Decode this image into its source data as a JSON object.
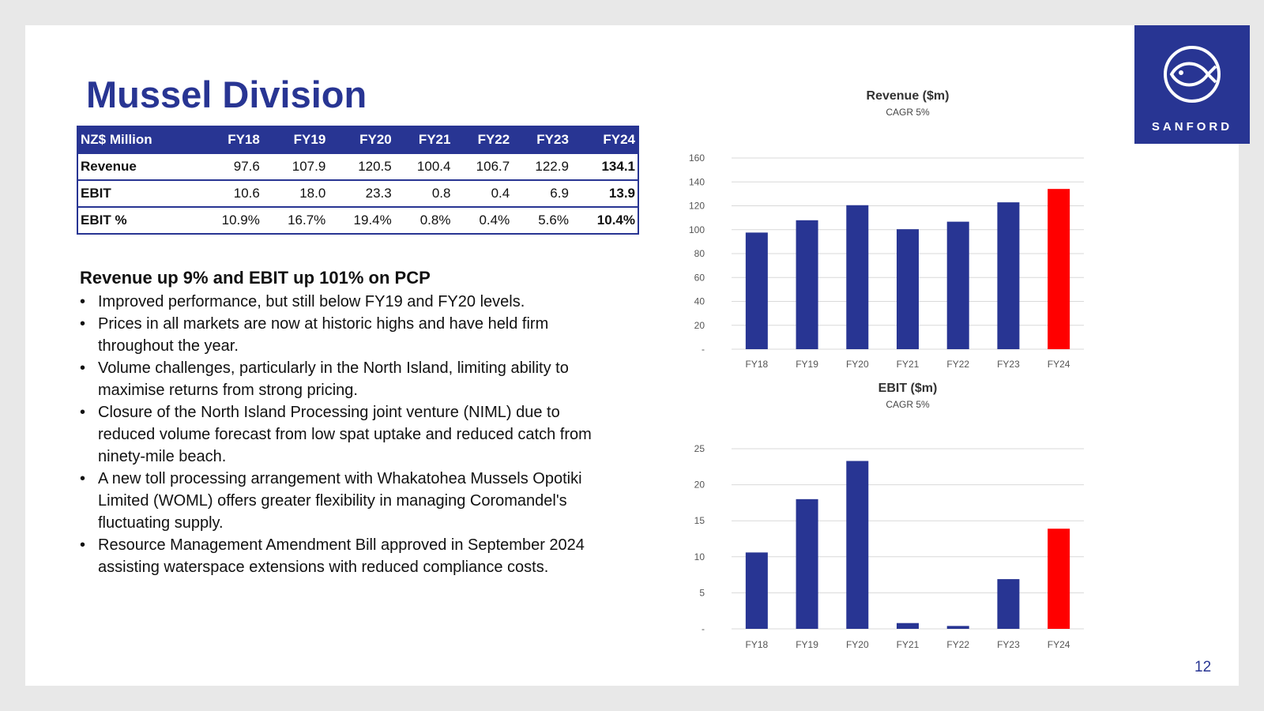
{
  "slide": {
    "title": "Mussel Division",
    "page_number": "12",
    "logo_text": "SANFORD"
  },
  "table": {
    "headers": [
      "NZ$ Million",
      "FY18",
      "FY19",
      "FY20",
      "FY21",
      "FY22",
      "FY23",
      "FY24"
    ],
    "rows": [
      [
        "Revenue",
        "97.6",
        "107.9",
        "120.5",
        "100.4",
        "106.7",
        "122.9",
        "134.1"
      ],
      [
        "EBIT",
        "10.6",
        "18.0",
        "23.3",
        "0.8",
        "0.4",
        "6.9",
        "13.9"
      ],
      [
        "EBIT %",
        "10.9%",
        "16.7%",
        "19.4%",
        "0.8%",
        "0.4%",
        "5.6%",
        "10.4%"
      ]
    ]
  },
  "commentary": {
    "heading": "Revenue up 9% and EBIT up 101% on PCP",
    "bullets": [
      "Improved performance, but still below FY19 and FY20 levels.",
      "Prices in all markets are now at historic highs and have held firm throughout the year.",
      "Volume challenges, particularly in the North Island, limiting ability to maximise returns from strong pricing.",
      "Closure of the North Island Processing joint venture (NIML) due to reduced volume forecast from low spat uptake and reduced catch from ninety-mile beach.",
      "A new toll processing arrangement with Whakatohea Mussels Opotiki Limited (WOML) offers greater flexibility in managing Coromandel's fluctuating supply.",
      "Resource Management Amendment Bill approved in September 2024 assisting waterspace extensions with reduced compliance costs."
    ]
  },
  "colors": {
    "brand": "#283593",
    "highlight": "#ff0000",
    "grid": "#d9d9d9"
  },
  "chart_data": [
    {
      "type": "bar",
      "title": "Revenue ($m)",
      "subtitle": "CAGR 5%",
      "categories": [
        "FY18",
        "FY19",
        "FY20",
        "FY21",
        "FY22",
        "FY23",
        "FY24"
      ],
      "values": [
        97.6,
        107.9,
        120.5,
        100.4,
        106.7,
        122.9,
        134.1
      ],
      "highlight_index": 6,
      "ylim": [
        0,
        160
      ],
      "yticks": [
        0,
        20,
        40,
        60,
        80,
        100,
        120,
        140,
        160
      ],
      "ytick_labels": [
        "-",
        "20",
        "40",
        "60",
        "80",
        "100",
        "120",
        "140",
        "160"
      ],
      "grid": true
    },
    {
      "type": "bar",
      "title": "EBIT ($m)",
      "subtitle": "CAGR 5%",
      "categories": [
        "FY18",
        "FY19",
        "FY20",
        "FY21",
        "FY22",
        "FY23",
        "FY24"
      ],
      "values": [
        10.6,
        18.0,
        23.3,
        0.8,
        0.4,
        6.9,
        13.9
      ],
      "highlight_index": 6,
      "ylim": [
        0,
        25
      ],
      "yticks": [
        0,
        5,
        10,
        15,
        20,
        25
      ],
      "ytick_labels": [
        "-",
        "5",
        "10",
        "15",
        "20",
        "25"
      ],
      "grid": true
    }
  ]
}
